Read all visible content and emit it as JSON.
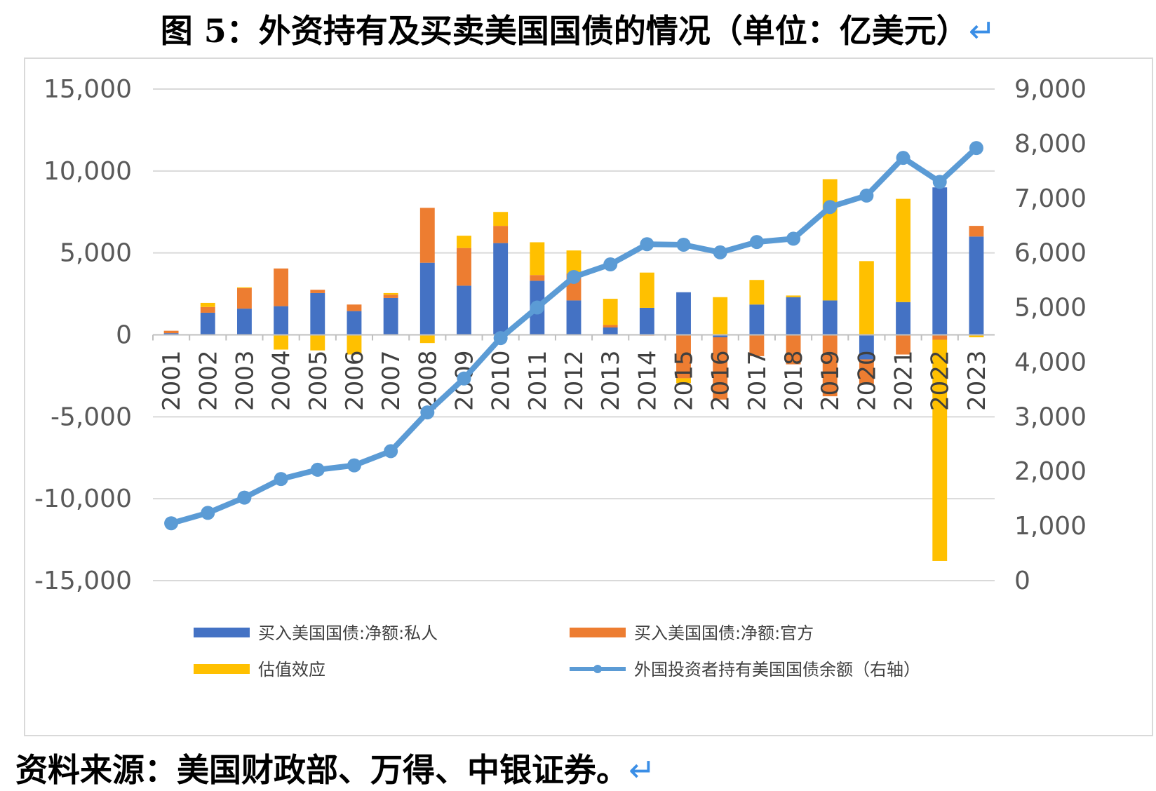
{
  "title": "图 5：外资持有及买卖美国国债的情况（单位：亿美元）",
  "source": "资料来源：美国财政部、万得、中银证券。",
  "return_mark": "↵",
  "chart_data": {
    "type": "bar",
    "categories": [
      "2001",
      "2002",
      "2003",
      "2004",
      "2005",
      "2006",
      "2007",
      "2008",
      "2009",
      "2010",
      "2011",
      "2012",
      "2013",
      "2014",
      "2015",
      "2016",
      "2017",
      "2018",
      "2019",
      "2020",
      "2021",
      "2022",
      "2023"
    ],
    "left_axis": {
      "ylim": [
        -15000,
        15000
      ],
      "ticks": [
        15000,
        10000,
        5000,
        0,
        -5000,
        -10000,
        -15000
      ],
      "tick_labels": [
        "15,000",
        "10,000",
        "5,000",
        "0",
        "-5,000",
        "-10,000",
        "-15,000"
      ]
    },
    "right_axis": {
      "ylim": [
        0,
        9000
      ],
      "ticks": [
        9000,
        8000,
        7000,
        6000,
        5000,
        4000,
        3000,
        2000,
        1000,
        0
      ],
      "tick_labels": [
        "9,000",
        "8,000",
        "7,000",
        "6,000",
        "5,000",
        "4,000",
        "3,000",
        "2,000",
        "1,000",
        "0"
      ]
    },
    "stacked": true,
    "grid": true,
    "legend_position": "bottom",
    "series": [
      {
        "name": "买入美国国债:净额:私人",
        "type": "bar",
        "axis": "left",
        "color": "#4472c4",
        "values": [
          100,
          1350,
          1600,
          1750,
          2550,
          1450,
          2250,
          4400,
          3000,
          5600,
          3300,
          2100,
          450,
          1650,
          2600,
          -150,
          1850,
          2300,
          2100,
          -1500,
          2000,
          9000,
          6000
        ]
      },
      {
        "name": "买入美国国债:净额:官方",
        "type": "bar",
        "axis": "left",
        "color": "#ed7d31",
        "values": [
          150,
          350,
          1250,
          2300,
          200,
          400,
          200,
          3350,
          2300,
          1050,
          350,
          1650,
          150,
          -50,
          -2650,
          -3800,
          -1300,
          -1800,
          -3750,
          -1500,
          -1200,
          -300,
          650
        ]
      },
      {
        "name": "估值效应",
        "type": "bar",
        "axis": "left",
        "color": "#ffc000",
        "values": [
          0,
          250,
          50,
          -900,
          -950,
          -1200,
          100,
          -500,
          750,
          850,
          2000,
          1400,
          1600,
          2150,
          -300,
          2300,
          1500,
          100,
          7400,
          4500,
          6300,
          -13500,
          -150
        ]
      },
      {
        "name": "外国投资者持有美国国债余额（右轴）",
        "type": "line",
        "axis": "right",
        "color": "#5b9bd5",
        "values": [
          1050,
          1240,
          1520,
          1860,
          2030,
          2110,
          2370,
          3080,
          3700,
          4440,
          5000,
          5560,
          5790,
          6160,
          6150,
          6010,
          6200,
          6260,
          6840,
          7050,
          7740,
          7300,
          7920
        ]
      }
    ]
  }
}
